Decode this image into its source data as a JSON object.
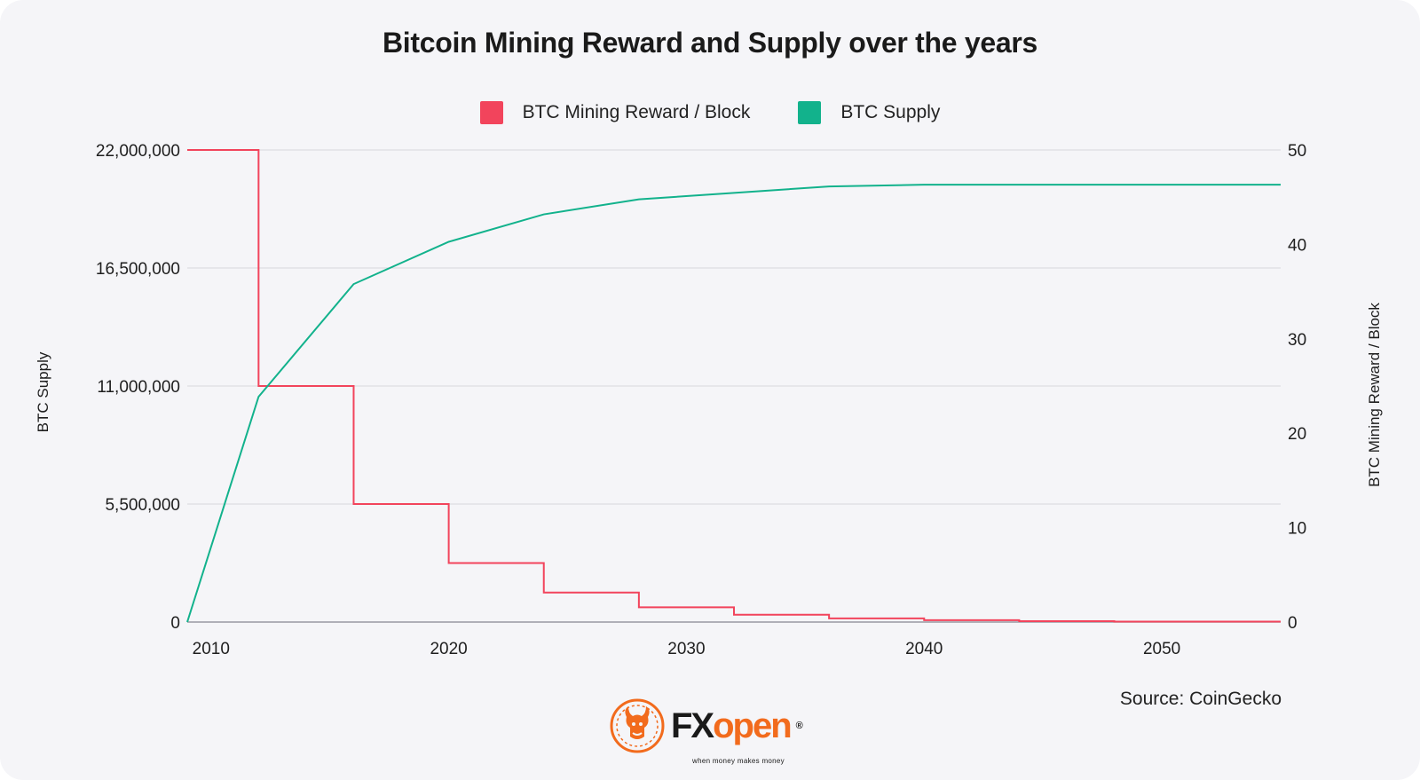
{
  "colors": {
    "reward": "#f2445c",
    "supply": "#12b28c",
    "grid": "#d6d6dc",
    "brand_orange": "#f26b1d"
  },
  "source_text": "Source: CoinGecko",
  "logo": {
    "fx": "FX",
    "open": "open",
    "registered": "®",
    "tagline": "when money makes money",
    "emblem_icon": "bull-icon"
  },
  "chart_data": {
    "type": "line",
    "title": "Bitcoin Mining Reward and Supply over the years",
    "xlabel": "",
    "ylabel": "BTC Supply",
    "y2label": "BTC Mining Reward / Block",
    "x_ticks": [
      "2010",
      "2020",
      "2030",
      "2040",
      "2050"
    ],
    "x_tick_values": [
      2010,
      2020,
      2030,
      2040,
      2050
    ],
    "y_ticks": [
      "0",
      "5,500,000",
      "11,000,000",
      "16,500,000",
      "22,000,000"
    ],
    "y_tick_values": [
      0,
      5500000,
      11000000,
      16500000,
      22000000
    ],
    "y2_ticks": [
      "0",
      "10",
      "20",
      "30",
      "40",
      "50"
    ],
    "y2_tick_values": [
      0,
      10,
      20,
      30,
      40,
      50
    ],
    "xlim": [
      2009,
      2055
    ],
    "ylim": [
      0,
      22000000
    ],
    "y2lim": [
      0,
      50
    ],
    "grid": true,
    "legend_position": "top-center",
    "series": [
      {
        "name": "BTC Mining Reward / Block",
        "axis": "right",
        "style": "step",
        "x": [
          2009,
          2012,
          2016,
          2020,
          2024,
          2028,
          2032,
          2036,
          2040,
          2044,
          2048,
          2055
        ],
        "values": [
          50,
          25,
          12.5,
          6.25,
          3.125,
          1.5625,
          0.78125,
          0.390625,
          0.195,
          0.098,
          0.049,
          0.049
        ]
      },
      {
        "name": "BTC Supply",
        "axis": "left",
        "style": "line",
        "x": [
          2009,
          2012,
          2016,
          2020,
          2024,
          2028,
          2032,
          2036,
          2040,
          2044,
          2048,
          2052,
          2055
        ],
        "values": [
          0,
          10500000,
          15750000,
          17720000,
          19000000,
          19700000,
          20000000,
          20300000,
          20380000,
          20380000,
          20380000,
          20380000,
          20380000
        ]
      }
    ]
  }
}
